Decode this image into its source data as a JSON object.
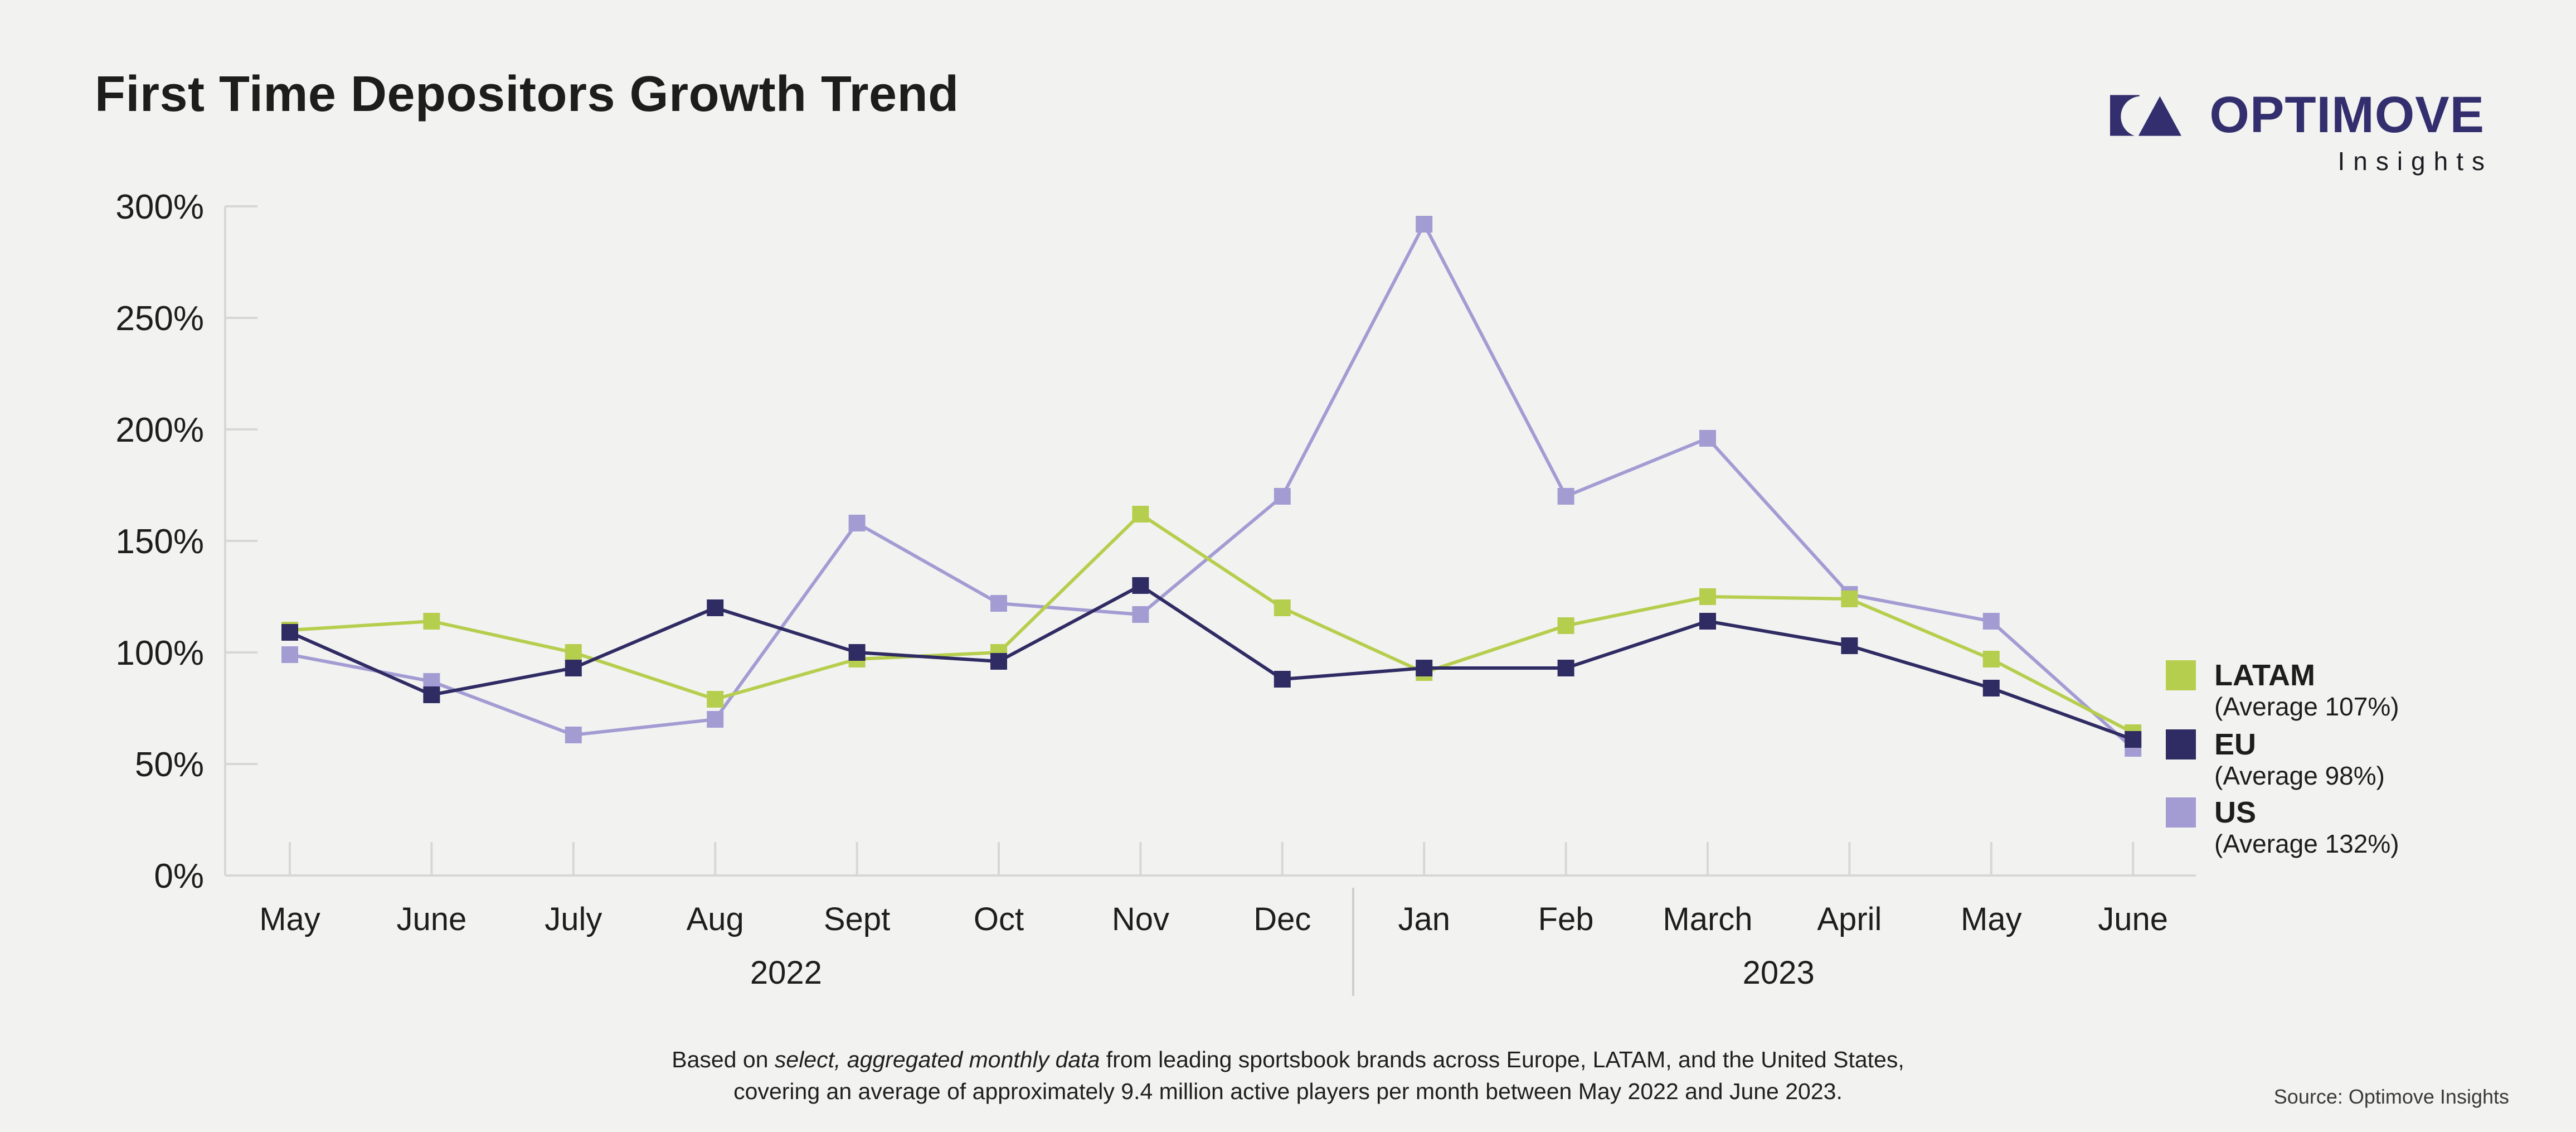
{
  "header": {
    "title": "First Time Depositors Growth Trend",
    "logo": {
      "brand": "OPTIMOVE",
      "sub": "Insights"
    }
  },
  "colors": {
    "background": "#f2f2f1",
    "axis": "#d7d7d5",
    "divider": "#cfcfcd",
    "text": "#1d1d1b",
    "logo_navy": "#332e6d"
  },
  "chart_data": {
    "type": "line",
    "title": "First Time Depositors Growth Trend",
    "categories": [
      "May",
      "June",
      "July",
      "Aug",
      "Sept",
      "Oct",
      "Nov",
      "Dec",
      "Jan",
      "Feb",
      "March",
      "April",
      "May",
      "June"
    ],
    "year_groups": [
      {
        "label": "2022",
        "from": 0,
        "to": 7
      },
      {
        "label": "2023",
        "from": 8,
        "to": 13
      }
    ],
    "ylim": [
      0,
      300
    ],
    "y_ticks_percent": [
      0,
      50,
      100,
      150,
      200,
      250,
      300
    ],
    "grid": "inward-ticks-only",
    "legend_position": "right",
    "marker": "square",
    "series": [
      {
        "name": "LATAM",
        "average_label": "(Average 107%)",
        "color": "#b6ce4d",
        "values": [
          110,
          114,
          100,
          79,
          97,
          100,
          162,
          120,
          91,
          112,
          125,
          124,
          97,
          64
        ]
      },
      {
        "name": "EU",
        "average_label": "(Average 98%)",
        "color": "#2f2b63",
        "values": [
          109,
          81,
          93,
          120,
          100,
          96,
          130,
          88,
          93,
          93,
          114,
          103,
          84,
          61
        ]
      },
      {
        "name": "US",
        "average_label": "(Average 132%)",
        "color": "#a39cd3",
        "values": [
          99,
          87,
          63,
          70,
          158,
          122,
          117,
          170,
          292,
          170,
          196,
          126,
          114,
          57
        ]
      }
    ]
  },
  "footer": {
    "line1_pre": "Based on ",
    "line1_italic": "select, aggregated monthly data",
    "line1_post": " from leading sportsbook brands across Europe, LATAM, and the United States,",
    "line2": "covering an average of approximately 9.4 million active players per month between May 2022 and June 2023.",
    "source": "Source: Optimove Insights"
  }
}
